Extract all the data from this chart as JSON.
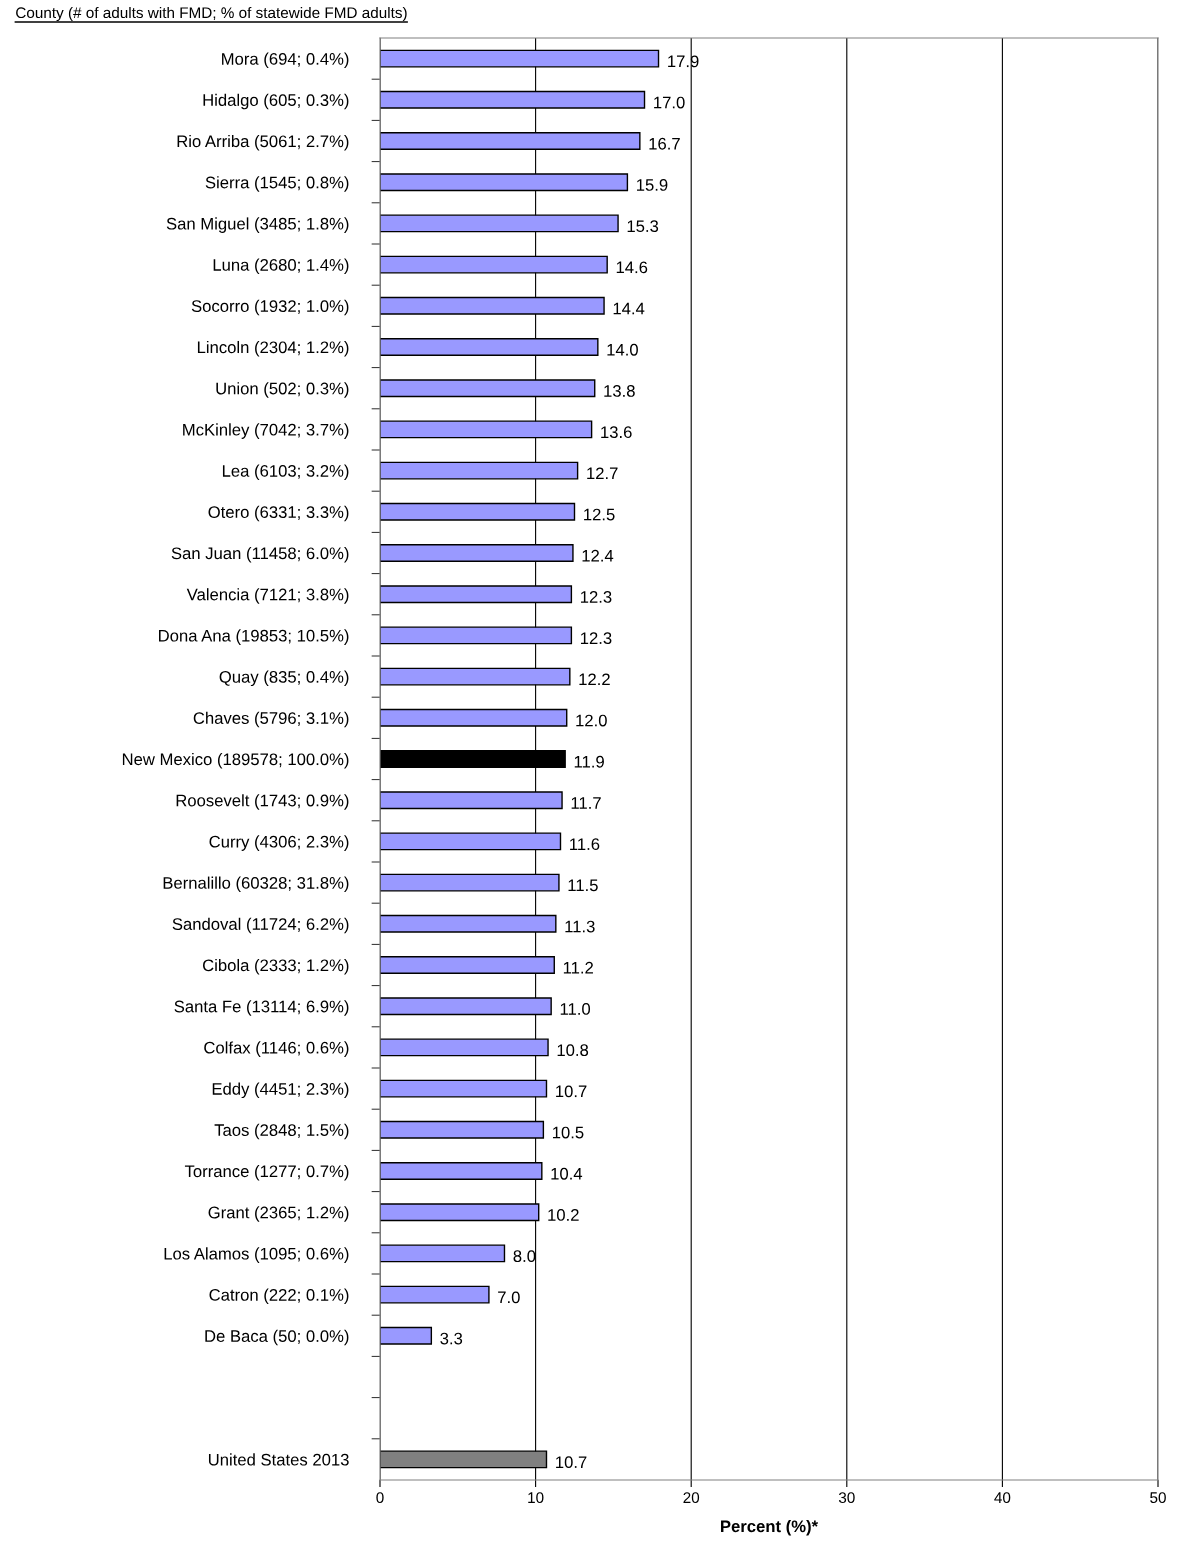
{
  "chart_data": {
    "type": "bar",
    "orientation": "horizontal",
    "title": "County (# of adults with FMD; % of statewide FMD adults)",
    "xlabel": "Percent (%)*",
    "categories": [
      "Mora (694; 0.4%)",
      "Hidalgo (605; 0.3%)",
      "Rio Arriba (5061; 2.7%)",
      "Sierra (1545; 0.8%)",
      "San Miguel (3485; 1.8%)",
      "Luna (2680; 1.4%)",
      "Socorro (1932; 1.0%)",
      "Lincoln (2304; 1.2%)",
      "Union (502; 0.3%)",
      "McKinley (7042; 3.7%)",
      "Lea (6103; 3.2%)",
      "Otero (6331; 3.3%)",
      "San Juan (11458; 6.0%)",
      "Valencia (7121; 3.8%)",
      "Dona Ana (19853; 10.5%)",
      "Quay (835; 0.4%)",
      "Chaves (5796; 3.1%)",
      "New Mexico (189578; 100.0%)",
      "Roosevelt (1743; 0.9%)",
      "Curry (4306; 2.3%)",
      "Bernalillo (60328; 31.8%)",
      "Sandoval (11724; 6.2%)",
      "Cibola (2333; 1.2%)",
      "Santa Fe (13114; 6.9%)",
      "Colfax (1146; 0.6%)",
      "Eddy (4451; 2.3%)",
      "Taos (2848; 1.5%)",
      "Torrance (1277; 0.7%)",
      "Grant (2365; 1.2%)",
      "Los Alamos (1095; 0.6%)",
      "Catron (222; 0.1%)",
      "De Baca (50; 0.0%)",
      null,
      null,
      "United States 2013"
    ],
    "values": [
      17.9,
      17.0,
      16.7,
      15.9,
      15.3,
      14.6,
      14.4,
      14.0,
      13.8,
      13.6,
      12.7,
      12.5,
      12.4,
      12.3,
      12.3,
      12.2,
      12.0,
      11.9,
      11.7,
      11.6,
      11.5,
      11.3,
      11.2,
      11.0,
      10.8,
      10.7,
      10.5,
      10.4,
      10.2,
      8.0,
      7.0,
      3.3,
      null,
      null,
      10.7
    ],
    "value_labels": [
      "17.9",
      "17.0",
      "16.7",
      "15.9",
      "15.3",
      "14.6",
      "14.4",
      "14.0",
      "13.8",
      "13.6",
      "12.7",
      "12.5",
      "12.4",
      "12.3",
      "12.3",
      "12.2",
      "12.0",
      "11.9",
      "11.7",
      "11.6",
      "11.5",
      "11.3",
      "11.2",
      "11.0",
      "10.8",
      "10.7",
      "10.5",
      "10.4",
      "10.2",
      "8.0",
      "7.0",
      "3.3",
      null,
      null,
      "10.7"
    ],
    "colors": [
      "#9999ff",
      "#9999ff",
      "#9999ff",
      "#9999ff",
      "#9999ff",
      "#9999ff",
      "#9999ff",
      "#9999ff",
      "#9999ff",
      "#9999ff",
      "#9999ff",
      "#9999ff",
      "#9999ff",
      "#9999ff",
      "#9999ff",
      "#9999ff",
      "#9999ff",
      "#000000",
      "#9999ff",
      "#9999ff",
      "#9999ff",
      "#9999ff",
      "#9999ff",
      "#9999ff",
      "#9999ff",
      "#9999ff",
      "#9999ff",
      "#9999ff",
      "#9999ff",
      "#9999ff",
      "#9999ff",
      "#9999ff",
      null,
      null,
      "#808080"
    ],
    "xlim": [
      0,
      50
    ],
    "xticks": [
      0,
      10,
      20,
      30,
      40,
      50
    ],
    "grid": "x",
    "legend": false
  }
}
